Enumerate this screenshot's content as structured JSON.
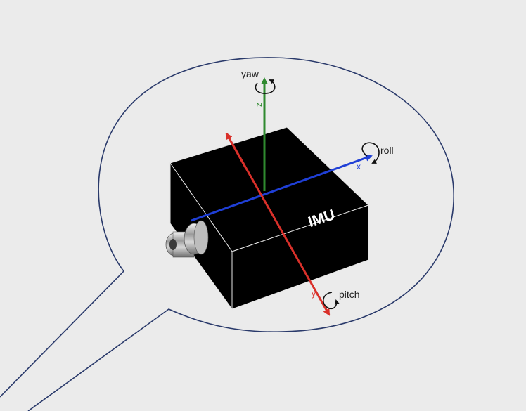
{
  "diagram": {
    "device_label": "IMU",
    "axes": [
      {
        "id": "x",
        "letter": "x",
        "rotation": "roll",
        "color": "#1f3fd6"
      },
      {
        "id": "y",
        "letter": "y",
        "rotation": "pitch",
        "color": "#d9302a"
      },
      {
        "id": "z",
        "letter": "z",
        "rotation": "yaw",
        "color": "#2f8a2f"
      }
    ],
    "colors": {
      "background": "#ebebeb",
      "bubble_outline": "#2a3a6b",
      "box": "#000000",
      "box_edges": "#e8e8e8"
    }
  }
}
